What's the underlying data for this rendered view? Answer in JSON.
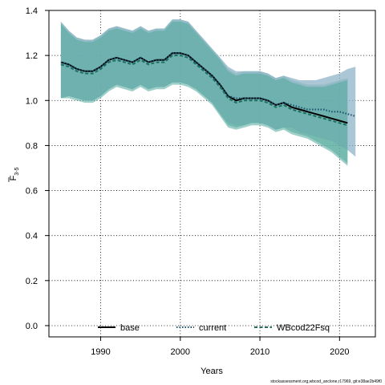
{
  "chart_data": {
    "type": "line",
    "xlabel": "Years",
    "ylabel_main": "F",
    "ylabel_sub": "3-5",
    "xlim": [
      1983.5,
      2024.5
    ],
    "ylim": [
      -0.05,
      1.4
    ],
    "x_ticks": [
      1990,
      2000,
      2010,
      2020
    ],
    "y_ticks": [
      0.0,
      0.2,
      0.4,
      0.6,
      0.8,
      1.0,
      1.2,
      1.4
    ],
    "y_tick_labels": [
      "0.0",
      "0.2",
      "0.4",
      "0.6",
      "0.8",
      "1.0",
      "1.2",
      "1.4"
    ],
    "grid": true,
    "legend_placement": "bottom",
    "series": [
      {
        "name": "base",
        "color": "#000000",
        "line_style": "solid",
        "band_color": "#7fbfaf",
        "band_opacity": 0.7,
        "x": [
          1985,
          1986,
          1987,
          1988,
          1989,
          1990,
          1991,
          1992,
          1993,
          1994,
          1995,
          1996,
          1997,
          1998,
          1999,
          2000,
          2001,
          2002,
          2003,
          2004,
          2005,
          2006,
          2007,
          2008,
          2009,
          2010,
          2011,
          2012,
          2013,
          2014,
          2015,
          2016,
          2017,
          2018,
          2019,
          2020,
          2021
        ],
        "values": [
          1.17,
          1.16,
          1.14,
          1.13,
          1.13,
          1.15,
          1.18,
          1.19,
          1.18,
          1.17,
          1.19,
          1.17,
          1.18,
          1.18,
          1.21,
          1.21,
          1.2,
          1.17,
          1.14,
          1.11,
          1.07,
          1.02,
          1.0,
          1.01,
          1.01,
          1.01,
          1.0,
          0.98,
          0.99,
          0.97,
          0.96,
          0.95,
          0.94,
          0.93,
          0.92,
          0.91,
          0.9
        ],
        "lower": [
          1.01,
          1.02,
          1.01,
          1.0,
          1.0,
          1.02,
          1.05,
          1.07,
          1.06,
          1.05,
          1.07,
          1.05,
          1.06,
          1.06,
          1.08,
          1.08,
          1.07,
          1.05,
          1.02,
          0.99,
          0.94,
          0.89,
          0.88,
          0.89,
          0.9,
          0.9,
          0.89,
          0.87,
          0.88,
          0.86,
          0.85,
          0.84,
          0.82,
          0.8,
          0.78,
          0.75,
          0.72
        ],
        "upper": [
          1.35,
          1.31,
          1.28,
          1.27,
          1.27,
          1.29,
          1.32,
          1.33,
          1.32,
          1.31,
          1.33,
          1.31,
          1.32,
          1.32,
          1.36,
          1.36,
          1.35,
          1.31,
          1.27,
          1.23,
          1.19,
          1.14,
          1.12,
          1.13,
          1.13,
          1.13,
          1.12,
          1.1,
          1.11,
          1.09,
          1.08,
          1.07,
          1.07,
          1.07,
          1.08,
          1.09,
          1.1
        ]
      },
      {
        "name": "current",
        "color": "#1a4f6e",
        "line_style": "dotted",
        "band_color": "#8fb4c8",
        "band_opacity": 0.75,
        "x": [
          1985,
          1986,
          1987,
          1988,
          1989,
          1990,
          1991,
          1992,
          1993,
          1994,
          1995,
          1996,
          1997,
          1998,
          1999,
          2000,
          2001,
          2002,
          2003,
          2004,
          2005,
          2006,
          2007,
          2008,
          2009,
          2010,
          2011,
          2012,
          2013,
          2014,
          2015,
          2016,
          2017,
          2018,
          2019,
          2020,
          2021,
          2022
        ],
        "values": [
          1.17,
          1.16,
          1.14,
          1.13,
          1.13,
          1.15,
          1.18,
          1.19,
          1.18,
          1.17,
          1.19,
          1.17,
          1.18,
          1.18,
          1.21,
          1.21,
          1.2,
          1.17,
          1.14,
          1.11,
          1.07,
          1.02,
          1.01,
          1.01,
          1.01,
          1.01,
          1.0,
          0.98,
          0.99,
          0.98,
          0.97,
          0.96,
          0.96,
          0.96,
          0.95,
          0.95,
          0.94,
          0.93
        ],
        "lower": [
          1.01,
          1.02,
          1.01,
          1.0,
          1.0,
          1.02,
          1.05,
          1.07,
          1.06,
          1.05,
          1.07,
          1.05,
          1.06,
          1.06,
          1.08,
          1.08,
          1.07,
          1.05,
          1.02,
          0.99,
          0.94,
          0.9,
          0.89,
          0.89,
          0.9,
          0.9,
          0.89,
          0.87,
          0.88,
          0.88,
          0.86,
          0.85,
          0.84,
          0.83,
          0.82,
          0.8,
          0.78,
          0.75
        ],
        "upper": [
          1.35,
          1.31,
          1.28,
          1.27,
          1.27,
          1.29,
          1.32,
          1.33,
          1.32,
          1.31,
          1.33,
          1.31,
          1.32,
          1.32,
          1.36,
          1.36,
          1.35,
          1.31,
          1.27,
          1.23,
          1.19,
          1.15,
          1.13,
          1.13,
          1.13,
          1.13,
          1.12,
          1.1,
          1.11,
          1.1,
          1.09,
          1.09,
          1.09,
          1.1,
          1.11,
          1.12,
          1.14,
          1.15
        ]
      },
      {
        "name": "WBcod22Fsq",
        "color": "#1f6f5f",
        "line_style": "dashed",
        "band_color": "#4fa89a",
        "band_opacity": 0.55,
        "x": [
          1985,
          1986,
          1987,
          1988,
          1989,
          1990,
          1991,
          1992,
          1993,
          1994,
          1995,
          1996,
          1997,
          1998,
          1999,
          2000,
          2001,
          2002,
          2003,
          2004,
          2005,
          2006,
          2007,
          2008,
          2009,
          2010,
          2011,
          2012,
          2013,
          2014,
          2015,
          2016,
          2017,
          2018,
          2019,
          2020,
          2021
        ],
        "values": [
          1.16,
          1.15,
          1.13,
          1.12,
          1.12,
          1.14,
          1.17,
          1.18,
          1.17,
          1.16,
          1.18,
          1.16,
          1.17,
          1.17,
          1.2,
          1.2,
          1.19,
          1.16,
          1.13,
          1.1,
          1.06,
          1.01,
          0.99,
          1.0,
          1.0,
          1.0,
          0.99,
          0.97,
          0.98,
          0.96,
          0.95,
          0.94,
          0.93,
          0.92,
          0.91,
          0.9,
          0.89
        ],
        "lower": [
          1.01,
          1.01,
          1.0,
          0.99,
          0.99,
          1.01,
          1.04,
          1.06,
          1.05,
          1.04,
          1.06,
          1.04,
          1.05,
          1.05,
          1.07,
          1.07,
          1.06,
          1.04,
          1.01,
          0.98,
          0.93,
          0.88,
          0.87,
          0.88,
          0.89,
          0.89,
          0.88,
          0.86,
          0.87,
          0.85,
          0.84,
          0.83,
          0.81,
          0.79,
          0.77,
          0.74,
          0.71
        ],
        "upper": [
          1.34,
          1.3,
          1.27,
          1.26,
          1.26,
          1.28,
          1.31,
          1.32,
          1.31,
          1.3,
          1.32,
          1.3,
          1.31,
          1.31,
          1.35,
          1.35,
          1.34,
          1.3,
          1.26,
          1.22,
          1.18,
          1.13,
          1.11,
          1.12,
          1.12,
          1.12,
          1.11,
          1.09,
          1.1,
          1.08,
          1.07,
          1.06,
          1.06,
          1.06,
          1.07,
          1.08,
          1.09
        ]
      }
    ]
  },
  "footer": "stockassessment.org,wbcod_anclone,r17969, git:e38ae2b49f0"
}
